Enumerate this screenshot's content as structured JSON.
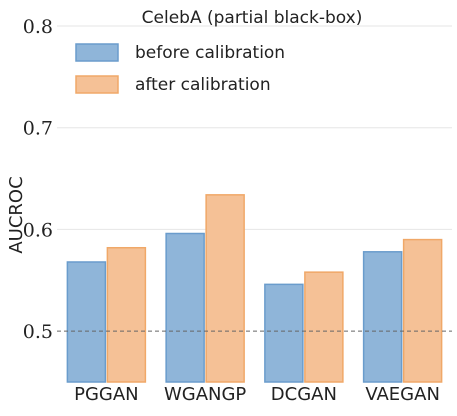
{
  "chart_data": {
    "type": "bar",
    "title": "CelebA (partial black-box)",
    "xlabel": "",
    "ylabel": "AUCROC",
    "categories": [
      "PGGAN",
      "WGANGP",
      "DCGAN",
      "VAEGAN"
    ],
    "series": [
      {
        "name": "before calibration",
        "values": [
          0.568,
          0.596,
          0.546,
          0.578
        ],
        "color": "#8fb5d9",
        "edge": "#6a9ccc"
      },
      {
        "name": "after calibration",
        "values": [
          0.582,
          0.634,
          0.558,
          0.59
        ],
        "color": "#f5c196",
        "edge": "#f0a868"
      }
    ],
    "ylim": [
      0.45,
      0.8
    ],
    "yticks": [
      0.5,
      0.6,
      0.7,
      0.8
    ],
    "ytick_labels": [
      "0.5",
      "0.6",
      "0.7",
      "0.8"
    ],
    "reference_line": 0.5,
    "grid": true,
    "legend_position": "top-left"
  }
}
